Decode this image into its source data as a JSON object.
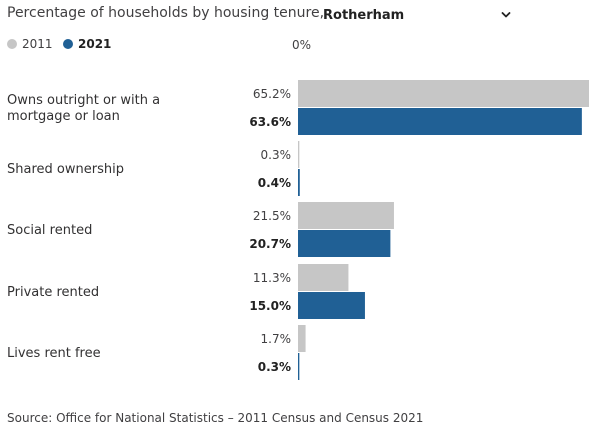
{
  "header": {
    "title": "Percentage of households by housing tenure,",
    "area_selected": "Rotherham"
  },
  "legend": [
    {
      "label": "2011",
      "color": "#c6c6c6"
    },
    {
      "label": "2021",
      "color": "#206095"
    }
  ],
  "axis": {
    "zero_label": "0%"
  },
  "chart_data": {
    "type": "bar",
    "orientation": "horizontal",
    "title": "Percentage of households by housing tenure, Rotherham",
    "categories": [
      "Owns outright or with a mortgage or loan",
      "Shared ownership",
      "Social rented",
      "Private rented",
      "Lives rent free"
    ],
    "series": [
      {
        "name": "2011",
        "values": [
          65.2,
          0.3,
          21.5,
          11.3,
          1.7
        ],
        "labels": [
          "65.2%",
          "0.3%",
          "21.5%",
          "11.3%",
          "1.7%"
        ],
        "color": "#c6c6c6"
      },
      {
        "name": "2021",
        "values": [
          63.6,
          0.4,
          20.7,
          15.0,
          0.3
        ],
        "labels": [
          "63.6%",
          "0.4%",
          "20.7%",
          "15.0%",
          "0.3%"
        ],
        "color": "#206095"
      }
    ],
    "xlim": [
      0,
      65.2
    ],
    "grid": false,
    "legend_position": "top-left"
  },
  "source": "Source: Office for National Statistics – 2011 Census and Census 2021"
}
